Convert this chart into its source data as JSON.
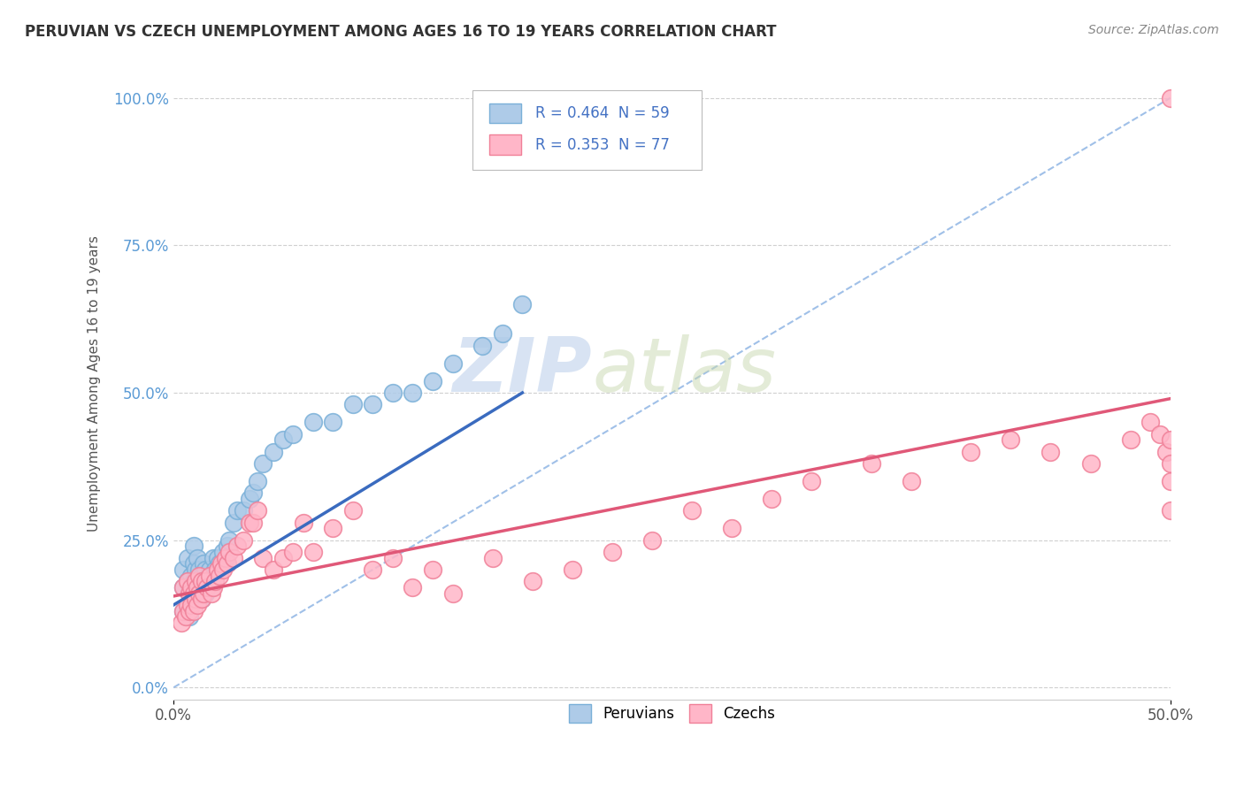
{
  "title": "PERUVIAN VS CZECH UNEMPLOYMENT AMONG AGES 16 TO 19 YEARS CORRELATION CHART",
  "source_text": "Source: ZipAtlas.com",
  "ylabel": "Unemployment Among Ages 16 to 19 years",
  "xlim": [
    0.0,
    0.5
  ],
  "ylim": [
    -0.02,
    1.05
  ],
  "yticks": [
    0.0,
    0.25,
    0.5,
    0.75,
    1.0
  ],
  "ytick_labels": [
    "0.0%",
    "25.0%",
    "50.0%",
    "75.0%",
    "100.0%"
  ],
  "xticks": [
    0.0,
    0.5
  ],
  "xtick_labels": [
    "0.0%",
    "50.0%"
  ],
  "peruvian_color": "#aecbe8",
  "peruvian_edge_color": "#7ab0d8",
  "czech_color": "#ffb6c8",
  "czech_edge_color": "#f08098",
  "peruvian_line_color": "#3a6bbf",
  "czech_line_color": "#e05878",
  "diagonal_line_color": "#a0c0e8",
  "R_peruvian": 0.464,
  "N_peruvian": 59,
  "R_czech": 0.353,
  "N_czech": 77,
  "legend_peruvians": "Peruvians",
  "legend_czechs": "Czechs",
  "watermark": "ZIPatlas",
  "background_color": "#ffffff",
  "peruvian_x": [
    0.005,
    0.005,
    0.005,
    0.007,
    0.007,
    0.007,
    0.008,
    0.008,
    0.009,
    0.009,
    0.01,
    0.01,
    0.01,
    0.01,
    0.011,
    0.011,
    0.012,
    0.012,
    0.012,
    0.013,
    0.013,
    0.014,
    0.014,
    0.015,
    0.015,
    0.016,
    0.016,
    0.017,
    0.018,
    0.019,
    0.02,
    0.02,
    0.021,
    0.022,
    0.023,
    0.025,
    0.027,
    0.028,
    0.03,
    0.032,
    0.035,
    0.038,
    0.04,
    0.042,
    0.045,
    0.05,
    0.055,
    0.06,
    0.07,
    0.08,
    0.09,
    0.1,
    0.11,
    0.12,
    0.13,
    0.14,
    0.155,
    0.165,
    0.175
  ],
  "peruvian_y": [
    0.13,
    0.17,
    0.2,
    0.14,
    0.18,
    0.22,
    0.12,
    0.16,
    0.14,
    0.19,
    0.15,
    0.18,
    0.21,
    0.24,
    0.16,
    0.2,
    0.15,
    0.18,
    0.22,
    0.17,
    0.2,
    0.15,
    0.19,
    0.17,
    0.21,
    0.16,
    0.2,
    0.18,
    0.2,
    0.17,
    0.19,
    0.22,
    0.2,
    0.22,
    0.21,
    0.23,
    0.24,
    0.25,
    0.28,
    0.3,
    0.3,
    0.32,
    0.33,
    0.35,
    0.38,
    0.4,
    0.42,
    0.43,
    0.45,
    0.45,
    0.48,
    0.48,
    0.5,
    0.5,
    0.52,
    0.55,
    0.58,
    0.6,
    0.65
  ],
  "czech_x": [
    0.004,
    0.005,
    0.005,
    0.006,
    0.007,
    0.007,
    0.008,
    0.008,
    0.009,
    0.009,
    0.01,
    0.01,
    0.011,
    0.011,
    0.012,
    0.012,
    0.013,
    0.013,
    0.014,
    0.014,
    0.015,
    0.016,
    0.017,
    0.018,
    0.019,
    0.02,
    0.021,
    0.022,
    0.023,
    0.024,
    0.025,
    0.026,
    0.027,
    0.028,
    0.03,
    0.032,
    0.035,
    0.038,
    0.04,
    0.042,
    0.045,
    0.05,
    0.055,
    0.06,
    0.065,
    0.07,
    0.08,
    0.09,
    0.1,
    0.11,
    0.12,
    0.13,
    0.14,
    0.16,
    0.18,
    0.2,
    0.22,
    0.24,
    0.26,
    0.28,
    0.3,
    0.32,
    0.35,
    0.37,
    0.4,
    0.42,
    0.44,
    0.46,
    0.48,
    0.49,
    0.495,
    0.498,
    0.5,
    0.5,
    0.5,
    0.5,
    0.5
  ],
  "czech_y": [
    0.11,
    0.13,
    0.17,
    0.12,
    0.14,
    0.18,
    0.13,
    0.16,
    0.14,
    0.17,
    0.13,
    0.16,
    0.15,
    0.18,
    0.14,
    0.17,
    0.16,
    0.19,
    0.15,
    0.18,
    0.16,
    0.18,
    0.17,
    0.19,
    0.16,
    0.17,
    0.18,
    0.2,
    0.19,
    0.21,
    0.2,
    0.22,
    0.21,
    0.23,
    0.22,
    0.24,
    0.25,
    0.28,
    0.28,
    0.3,
    0.22,
    0.2,
    0.22,
    0.23,
    0.28,
    0.23,
    0.27,
    0.3,
    0.2,
    0.22,
    0.17,
    0.2,
    0.16,
    0.22,
    0.18,
    0.2,
    0.23,
    0.25,
    0.3,
    0.27,
    0.32,
    0.35,
    0.38,
    0.35,
    0.4,
    0.42,
    0.4,
    0.38,
    0.42,
    0.45,
    0.43,
    0.4,
    1.0,
    0.42,
    0.38,
    0.35,
    0.3
  ]
}
